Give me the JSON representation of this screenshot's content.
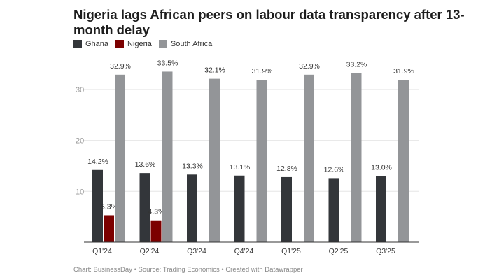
{
  "chart_data": {
    "type": "bar",
    "title": "Nigeria lags African peers on labour data transparency after 13-month delay",
    "categories": [
      "Q1'24",
      "Q2'24",
      "Q3'24",
      "Q4'24",
      "Q1'25",
      "Q2'25",
      "Q3'25"
    ],
    "series": [
      {
        "name": "Ghana",
        "color": "#33363a",
        "values": [
          14.2,
          13.6,
          13.3,
          13.1,
          12.8,
          12.6,
          13.0
        ]
      },
      {
        "name": "Nigeria",
        "color": "#7c0000",
        "values": [
          5.3,
          4.3,
          null,
          null,
          null,
          null,
          null
        ]
      },
      {
        "name": "South Africa",
        "color": "#939598",
        "values": [
          32.9,
          33.5,
          32.1,
          31.9,
          32.9,
          33.2,
          31.9
        ]
      }
    ],
    "yticks": [
      10,
      20,
      30
    ],
    "ylim": [
      0,
      35
    ],
    "grid": true,
    "legend": "top-left",
    "value_suffix": "%"
  },
  "footer": "Chart: BusinessDay • Source: Trading Economics • Created with Datawrapper"
}
